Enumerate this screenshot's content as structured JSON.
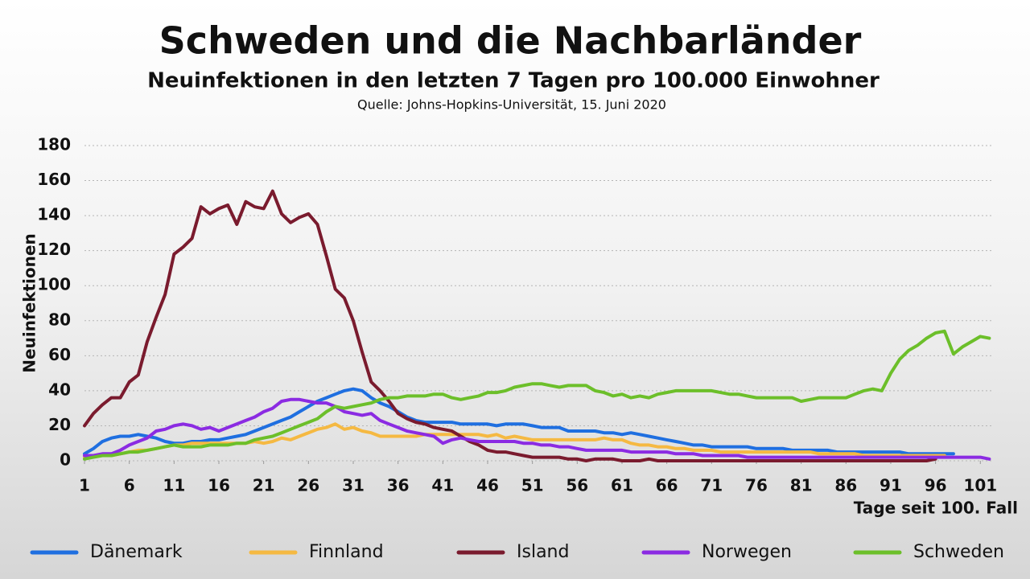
{
  "chart_data": {
    "type": "line",
    "title": "Schweden und die Nachbarländer",
    "subtitle": "Neuinfektionen in den letzten 7 Tagen pro 100.000 Einwohner",
    "source": "Quelle: Johns-Hopkins-Universität, 15. Juni 2020",
    "x_label": "Tage seit 100. Fall",
    "y_label": "Neuinfektionen",
    "xlim": [
      1,
      102.5
    ],
    "xticks": [
      1,
      6,
      11,
      16,
      21,
      26,
      31,
      36,
      41,
      46,
      51,
      56,
      61,
      66,
      71,
      76,
      81,
      86,
      91,
      96,
      101
    ],
    "ylim": [
      0,
      180
    ],
    "yticks": [
      0,
      20,
      40,
      60,
      80,
      100,
      120,
      140,
      160,
      180
    ],
    "grid": true,
    "legend": "bottom",
    "x": [
      1,
      2,
      3,
      4,
      5,
      6,
      7,
      8,
      9,
      10,
      11,
      12,
      13,
      14,
      15,
      16,
      17,
      18,
      19,
      20,
      21,
      22,
      23,
      24,
      25,
      26,
      27,
      28,
      29,
      30,
      31,
      32,
      33,
      34,
      35,
      36,
      37,
      38,
      39,
      40,
      41,
      42,
      43,
      44,
      45,
      46,
      47,
      48,
      49,
      50,
      51,
      52,
      53,
      54,
      55,
      56,
      57,
      58,
      59,
      60,
      61,
      62,
      63,
      64,
      65,
      66,
      67,
      68,
      69,
      70,
      71,
      72,
      73,
      74,
      75,
      76,
      77,
      78,
      79,
      80,
      81,
      82,
      83,
      84,
      85,
      86,
      87,
      88,
      89,
      90,
      91,
      92,
      93,
      94,
      95,
      96,
      97,
      98,
      99,
      100,
      101,
      102
    ],
    "series": [
      {
        "name": "Dänemark",
        "color": "#1f6fe0",
        "values": [
          4,
          7,
          11,
          13,
          14,
          14,
          15,
          14,
          13,
          11,
          10,
          10,
          11,
          11,
          12,
          12,
          13,
          14,
          15,
          17,
          19,
          21,
          23,
          25,
          28,
          31,
          34,
          36,
          38,
          40,
          41,
          40,
          36,
          33,
          31,
          28,
          25,
          23,
          22,
          22,
          22,
          22,
          21,
          21,
          21,
          21,
          20,
          21,
          21,
          21,
          20,
          19,
          19,
          19,
          17,
          17,
          17,
          17,
          16,
          16,
          15,
          16,
          15,
          14,
          13,
          12,
          11,
          10,
          9,
          9,
          8,
          8,
          8,
          8,
          8,
          7,
          7,
          7,
          7,
          6,
          6,
          6,
          6,
          6,
          5,
          5,
          5,
          5,
          5,
          5,
          5,
          5,
          4,
          4,
          4,
          4,
          4,
          4,
          null,
          null,
          null,
          null
        ]
      },
      {
        "name": "Finnland",
        "color": "#f5b942",
        "values": [
          2,
          3,
          3,
          3,
          4,
          5,
          6,
          6,
          7,
          8,
          9,
          9,
          10,
          10,
          10,
          10,
          10,
          10,
          10,
          11,
          10,
          11,
          13,
          12,
          14,
          16,
          18,
          19,
          21,
          18,
          19,
          17,
          16,
          14,
          14,
          14,
          14,
          14,
          15,
          15,
          15,
          15,
          15,
          15,
          15,
          14,
          15,
          13,
          14,
          13,
          12,
          12,
          12,
          12,
          12,
          12,
          12,
          12,
          13,
          12,
          12,
          10,
          9,
          9,
          8,
          8,
          7,
          7,
          6,
          6,
          6,
          5,
          5,
          5,
          5,
          5,
          5,
          5,
          5,
          5,
          5,
          5,
          4,
          4,
          4,
          4,
          4,
          3,
          3,
          3,
          3,
          3,
          3,
          3,
          3,
          3,
          3,
          null,
          null,
          null,
          null,
          null
        ]
      },
      {
        "name": "Island",
        "color": "#7a1b2e",
        "values": [
          20,
          27,
          32,
          36,
          36,
          45,
          49,
          68,
          82,
          95,
          118,
          122,
          127,
          145,
          141,
          144,
          146,
          135,
          148,
          145,
          144,
          154,
          141,
          136,
          139,
          141,
          135,
          117,
          98,
          93,
          80,
          62,
          45,
          40,
          34,
          27,
          24,
          22,
          21,
          19,
          18,
          17,
          14,
          11,
          9,
          6,
          5,
          5,
          4,
          3,
          2,
          2,
          2,
          2,
          1,
          1,
          0,
          1,
          1,
          1,
          0,
          0,
          0,
          1,
          0,
          0,
          0,
          0,
          0,
          0,
          0,
          0,
          0,
          0,
          0,
          0,
          0,
          0,
          0,
          0,
          0,
          0,
          0,
          0,
          0,
          0,
          0,
          0,
          0,
          0,
          0,
          0,
          0,
          0,
          0,
          1,
          null,
          null,
          null,
          null,
          null,
          null
        ]
      },
      {
        "name": "Norwegen",
        "color": "#8b2be2",
        "values": [
          3,
          3,
          4,
          4,
          6,
          9,
          11,
          13,
          17,
          18,
          20,
          21,
          20,
          18,
          19,
          17,
          19,
          21,
          23,
          25,
          28,
          30,
          34,
          35,
          35,
          34,
          33,
          33,
          31,
          28,
          27,
          26,
          27,
          23,
          21,
          19,
          17,
          16,
          15,
          14,
          10,
          12,
          13,
          12,
          11,
          11,
          11,
          11,
          11,
          10,
          10,
          9,
          9,
          8,
          8,
          7,
          6,
          6,
          6,
          6,
          6,
          5,
          5,
          5,
          5,
          5,
          4,
          4,
          4,
          3,
          3,
          3,
          3,
          3,
          2,
          2,
          2,
          2,
          2,
          2,
          2,
          2,
          2,
          2,
          2,
          2,
          2,
          2,
          2,
          2,
          2,
          2,
          2,
          2,
          2,
          2,
          2,
          2,
          2,
          2,
          2,
          1
        ]
      },
      {
        "name": "Schweden",
        "color": "#6cbf2a",
        "values": [
          1,
          2,
          3,
          3,
          4,
          5,
          5,
          6,
          7,
          8,
          9,
          8,
          8,
          8,
          9,
          9,
          9,
          10,
          10,
          12,
          13,
          14,
          16,
          18,
          20,
          22,
          24,
          28,
          31,
          30,
          31,
          32,
          33,
          35,
          36,
          36,
          37,
          37,
          37,
          38,
          38,
          36,
          35,
          36,
          37,
          39,
          39,
          40,
          42,
          43,
          44,
          44,
          43,
          42,
          43,
          43,
          43,
          40,
          39,
          37,
          38,
          36,
          37,
          36,
          38,
          39,
          40,
          40,
          40,
          40,
          40,
          39,
          38,
          38,
          37,
          36,
          36,
          36,
          36,
          36,
          34,
          35,
          36,
          36,
          36,
          36,
          38,
          40,
          41,
          40,
          50,
          58,
          63,
          66,
          70,
          73,
          74,
          61,
          65,
          68,
          71,
          70
        ]
      }
    ]
  }
}
